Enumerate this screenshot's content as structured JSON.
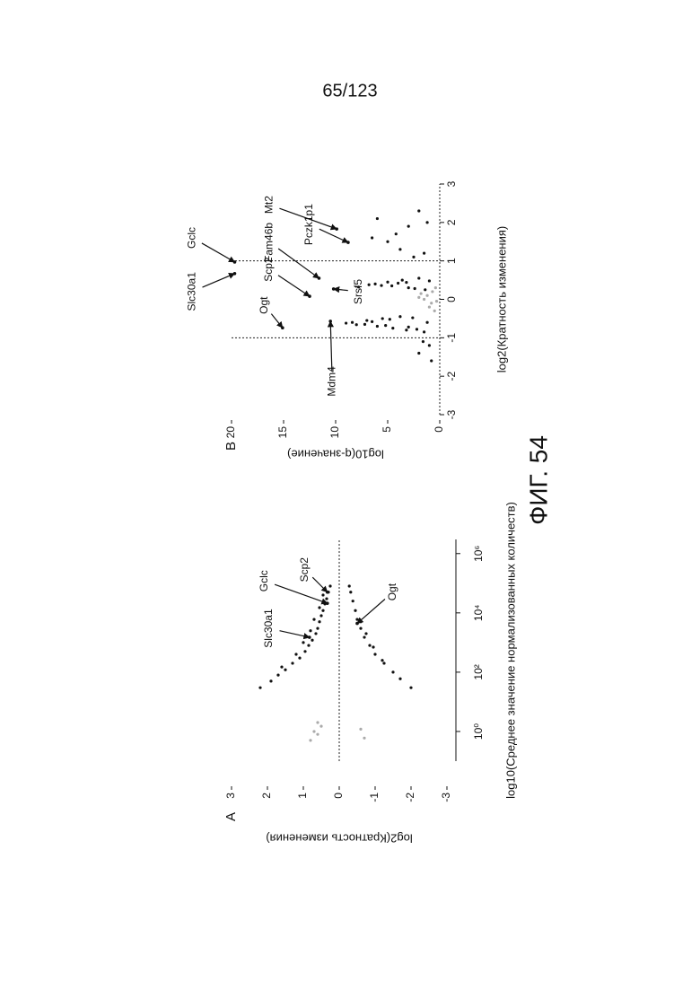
{
  "page_number": "65/123",
  "figure_label": "ФИГ. 54",
  "chart_data": [
    {
      "type": "scatter",
      "panel": "A",
      "xscale": "log",
      "xlabel": "log10(Среднее значение нормализованных количеств)",
      "ylabel": "log2(Кратность изменения)",
      "xlim": [
        0.1,
        3000000
      ],
      "ylim": [
        -3,
        3
      ],
      "xticks": [
        {
          "value": 1,
          "label": "10⁰"
        },
        {
          "value": 100,
          "label": "10²"
        },
        {
          "value": 10000,
          "label": "10⁴"
        },
        {
          "value": 1000000,
          "label": "10⁶"
        }
      ],
      "yticks": [
        -3,
        -2,
        -1,
        0,
        1,
        2,
        3
      ],
      "hlines": [
        0
      ],
      "vlines": [],
      "series": [
        {
          "color": "#111111",
          "x": [
            30,
            50,
            80,
            120,
            200,
            300,
            500,
            800,
            1200,
            2000,
            3000,
            5000,
            8000,
            12000,
            20000,
            30000,
            50000,
            80000,
            150,
            400,
            1000,
            2500,
            6000,
            15000,
            40000
          ],
          "y": [
            2.2,
            1.9,
            1.7,
            1.5,
            1.3,
            1.1,
            0.95,
            0.85,
            0.75,
            0.65,
            0.6,
            0.55,
            0.5,
            0.45,
            0.4,
            0.35,
            0.3,
            0.25,
            1.6,
            1.2,
            1.0,
            0.8,
            0.7,
            0.55,
            0.45
          ]
        },
        {
          "color": "#111111",
          "x": [
            30,
            60,
            100,
            200,
            400,
            800,
            1500,
            3000,
            6000,
            12000,
            25000,
            50000,
            80000,
            250,
            700,
            2000,
            5000
          ],
          "y": [
            -2.0,
            -1.7,
            -1.5,
            -1.25,
            -1.0,
            -0.85,
            -0.7,
            -0.6,
            -0.5,
            -0.45,
            -0.38,
            -0.32,
            -0.28,
            -1.2,
            -0.95,
            -0.75,
            -0.6
          ]
        },
        {
          "color": "#aaaaaa",
          "x": [
            0.5,
            0.8,
            1,
            1.5,
            2,
            0.6,
            1.2
          ],
          "y": [
            0.8,
            0.6,
            0.7,
            0.5,
            0.6,
            -0.7,
            -0.6
          ]
        }
      ],
      "annotations": [
        {
          "text": "Slc30a1",
          "x": 1500,
          "y": 0.83
        },
        {
          "text": "Gclc",
          "x": 21000,
          "y": 0.33
        },
        {
          "text": "Scp2",
          "x": 50000,
          "y": 0.33
        },
        {
          "text": "Ogt",
          "x": 4400,
          "y": -0.5
        }
      ]
    },
    {
      "type": "scatter",
      "panel": "B",
      "xscale": "linear",
      "xlabel": "log2(Кратность изменения)",
      "ylabel": "log10(q-значение)",
      "xlim": [
        -3,
        3
      ],
      "ylim": [
        0,
        20
      ],
      "xticks": [
        -3,
        -2,
        -1,
        0,
        1,
        2,
        3
      ],
      "yticks": [
        0,
        5,
        10,
        15,
        20
      ],
      "hlines": [
        0
      ],
      "vlines": [
        -1,
        1
      ],
      "series": [
        {
          "color": "#111111",
          "x": [
            -0.85,
            -0.8,
            -0.75,
            -0.7,
            -0.65,
            -0.6,
            -0.55,
            -0.5,
            -0.45,
            -0.62,
            -0.58,
            -0.68,
            -0.72,
            -0.78,
            -0.52,
            -0.48,
            -0.66,
            -0.6,
            0.25,
            0.3,
            0.35,
            0.4,
            0.45,
            0.5,
            0.55,
            0.32,
            0.38,
            0.42,
            0.28,
            0.48,
            0.36,
            0.44,
            1.1,
            1.3,
            1.5,
            1.7,
            1.9,
            2.1,
            2.3,
            1.2,
            1.6,
            2.0,
            -1.2,
            -1.4,
            -1.6,
            -1.1
          ],
          "y": [
            1.5,
            3.2,
            4.5,
            6.0,
            7.2,
            8.4,
            7.0,
            5.5,
            3.8,
            9.0,
            6.5,
            5.2,
            3.0,
            2.2,
            4.8,
            2.6,
            8.0,
            1.2,
            1.4,
            3.0,
            4.6,
            6.2,
            5.0,
            3.6,
            2.0,
            7.8,
            6.8,
            4.0,
            2.4,
            1.0,
            5.6,
            3.2,
            2.5,
            3.8,
            5.0,
            4.2,
            3.0,
            6.0,
            2.0,
            1.5,
            6.5,
            1.2,
            1.0,
            2.0,
            0.8,
            1.6
          ]
        },
        {
          "color": "#aaaaaa",
          "x": [
            -0.3,
            -0.2,
            -0.1,
            0,
            0.1,
            0.2,
            0.3,
            -0.05,
            0.05,
            0.15
          ],
          "y": [
            0.5,
            1,
            0.8,
            1.5,
            1.2,
            0.7,
            0.4,
            0.3,
            2,
            1.8
          ]
        }
      ],
      "annotations": [
        {
          "text": "Slc30a1",
          "x": 0.67,
          "y": 19.7
        },
        {
          "text": "Gclc",
          "x": 0.97,
          "y": 19.7
        },
        {
          "text": "Ogt",
          "x": -0.74,
          "y": 15.1
        },
        {
          "text": "Scp2",
          "x": 0.08,
          "y": 12.5
        },
        {
          "text": "Fam46b",
          "x": 0.55,
          "y": 11.6
        },
        {
          "text": "Mt2",
          "x": 1.83,
          "y": 9.9
        },
        {
          "text": "Pczk1p1",
          "x": 1.48,
          "y": 8.8
        },
        {
          "text": "Srsf5",
          "x": 0.27,
          "y": 10.2
        },
        {
          "text": "Mdm4",
          "x": -0.57,
          "y": 10.5
        }
      ]
    }
  ]
}
